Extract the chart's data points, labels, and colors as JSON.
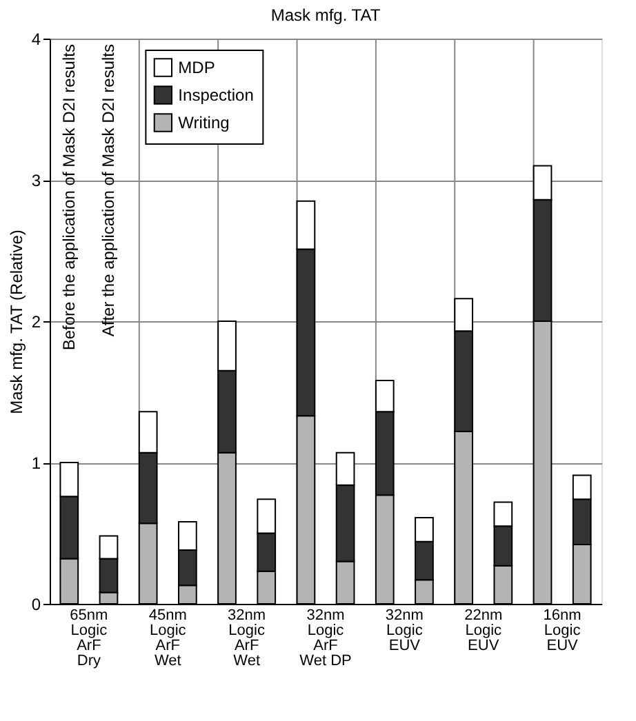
{
  "chart_data": {
    "type": "bar",
    "title": "Mask mfg. TAT",
    "ylabel": "Mask mfg. TAT (Relative)",
    "categories": [
      "65nm\nLogic\nArF\nDry",
      null,
      "45nm\nLogic\nArF\nWet",
      null,
      "32nm\nLogic\nArF\nWet",
      null,
      "32nm\nLogic\nArF\nWet DP",
      null,
      "32nm\nLogic\nEUV",
      null,
      "22nm\nLogic\nEUV",
      null,
      "16nm\nLogic\nEUV",
      null
    ],
    "series": [
      {
        "name": "Writing",
        "color": "#b4b4b4",
        "values": [
          0.32,
          0.08,
          0.57,
          0.13,
          1.07,
          0.23,
          1.33,
          0.3,
          0.77,
          0.17,
          1.22,
          0.27,
          2.0,
          0.42
        ]
      },
      {
        "name": "Inspection",
        "color": "#333333",
        "values": [
          0.44,
          0.24,
          0.5,
          0.25,
          0.58,
          0.27,
          1.18,
          0.54,
          0.59,
          0.27,
          0.71,
          0.28,
          0.86,
          0.32
        ]
      },
      {
        "name": "MDP",
        "color": "#ffffff",
        "values": [
          0.24,
          0.16,
          0.29,
          0.2,
          0.35,
          0.24,
          0.34,
          0.23,
          0.22,
          0.17,
          0.23,
          0.17,
          0.24,
          0.17
        ]
      }
    ],
    "stacked": true,
    "ylim": [
      0,
      4
    ],
    "yticks": [
      0,
      1,
      2,
      3,
      4
    ],
    "grid": true,
    "legend": "top left",
    "annotations": [
      "Before the application of Mask D2I results",
      "After the application of Mask D2I results"
    ]
  }
}
